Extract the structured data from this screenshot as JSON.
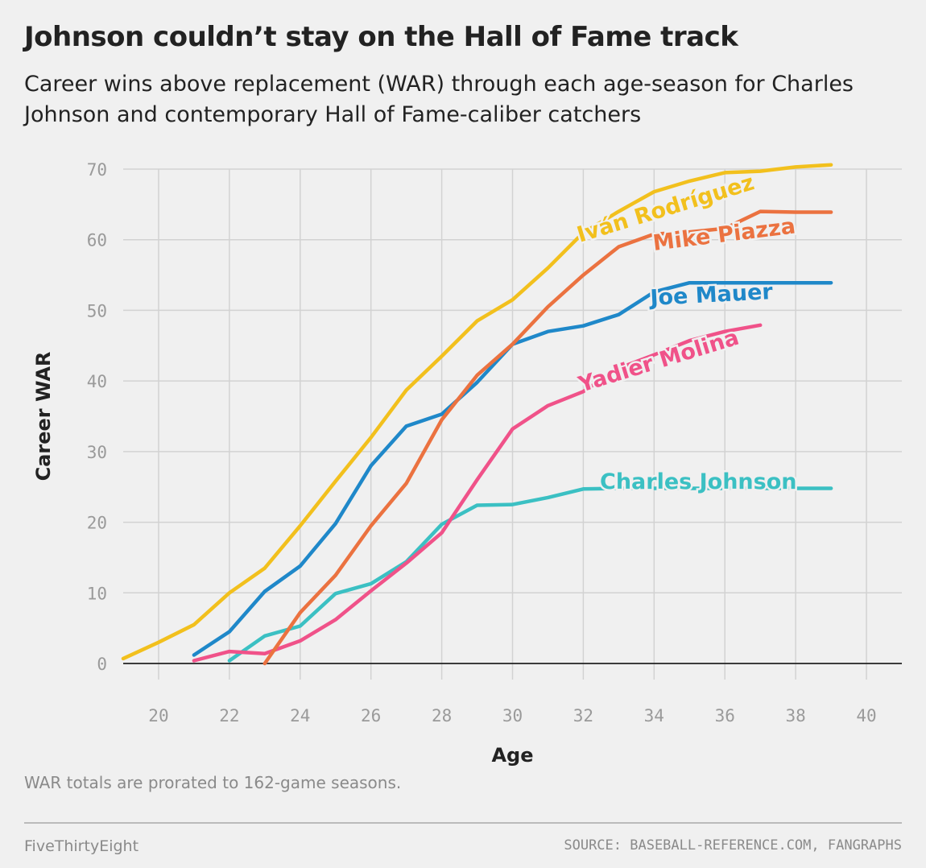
{
  "header": {
    "title": "Johnson couldn’t stay on the Hall of Fame track",
    "subtitle": "Career wins above replacement (WAR) through each age-season for Charles Johnson and contemporary Hall of Fame-caliber catchers"
  },
  "footer": {
    "note": "WAR totals are prorated to 162-game seasons.",
    "brand": "FiveThirtyEight",
    "source": "SOURCE: BASEBALL-REFERENCE.COM, FANGRAPHS"
  },
  "chart_data": {
    "type": "line",
    "xlabel": "Age",
    "ylabel": "Career WAR",
    "xlim": [
      19,
      41
    ],
    "ylim": [
      0,
      70
    ],
    "x_ticks": [
      20,
      22,
      24,
      26,
      28,
      30,
      32,
      34,
      36,
      38,
      40
    ],
    "y_ticks": [
      0,
      10,
      20,
      30,
      40,
      50,
      60,
      70
    ],
    "grid": true,
    "legend": "direct labels on lines",
    "series": [
      {
        "name": "Iván Rodríguez",
        "color": "#f2c01d",
        "x": [
          19,
          20,
          21,
          22,
          23,
          24,
          25,
          26,
          27,
          28,
          29,
          30,
          31,
          32,
          33,
          34,
          35,
          36,
          37,
          38,
          39
        ],
        "y": [
          0.7,
          3.0,
          5.5,
          10.0,
          13.5,
          19.5,
          25.8,
          32.0,
          38.7,
          43.5,
          48.5,
          51.5,
          56.0,
          61.0,
          64.0,
          66.8,
          68.3,
          69.5,
          69.7,
          70.3,
          70.6
        ]
      },
      {
        "name": "Mike Piazza",
        "color": "#eb7240",
        "x": [
          23,
          24,
          25,
          26,
          27,
          28,
          29,
          30,
          31,
          32,
          33,
          34,
          35,
          36,
          37,
          38,
          39
        ],
        "y": [
          0.0,
          7.2,
          12.5,
          19.5,
          25.5,
          34.5,
          40.8,
          45.2,
          50.5,
          55.0,
          59.0,
          60.8,
          61.1,
          61.6,
          64.0,
          63.9,
          63.9
        ]
      },
      {
        "name": "Joe Mauer",
        "color": "#1f88c9",
        "x": [
          21,
          22,
          23,
          24,
          25,
          26,
          27,
          28,
          29,
          30,
          31,
          32,
          33,
          34,
          35,
          36,
          37,
          38,
          39
        ],
        "y": [
          1.2,
          4.5,
          10.2,
          13.8,
          19.8,
          28.0,
          33.6,
          35.3,
          39.8,
          45.2,
          47.0,
          47.8,
          49.4,
          52.6,
          53.9,
          53.9,
          53.9,
          53.9,
          53.9
        ]
      },
      {
        "name": "Yadier Molina",
        "color": "#f05289",
        "x": [
          21,
          22,
          23,
          24,
          25,
          26,
          27,
          28,
          29,
          30,
          31,
          32,
          33,
          34,
          35,
          36,
          37
        ],
        "y": [
          0.4,
          1.7,
          1.4,
          3.2,
          6.2,
          10.3,
          14.2,
          18.5,
          26.0,
          33.2,
          36.5,
          38.5,
          41.8,
          43.7,
          45.7,
          47.0,
          47.9
        ]
      },
      {
        "name": "Charles Johnson",
        "color": "#3bc0c3",
        "x": [
          22,
          23,
          24,
          25,
          26,
          27,
          28,
          29,
          30,
          31,
          32,
          33,
          34,
          35,
          36,
          37,
          38,
          39
        ],
        "y": [
          0.4,
          3.9,
          5.3,
          9.9,
          11.3,
          14.4,
          19.7,
          22.4,
          22.5,
          23.5,
          24.7,
          24.8,
          24.8,
          24.8,
          24.8,
          24.8,
          24.8,
          24.8
        ]
      }
    ]
  }
}
